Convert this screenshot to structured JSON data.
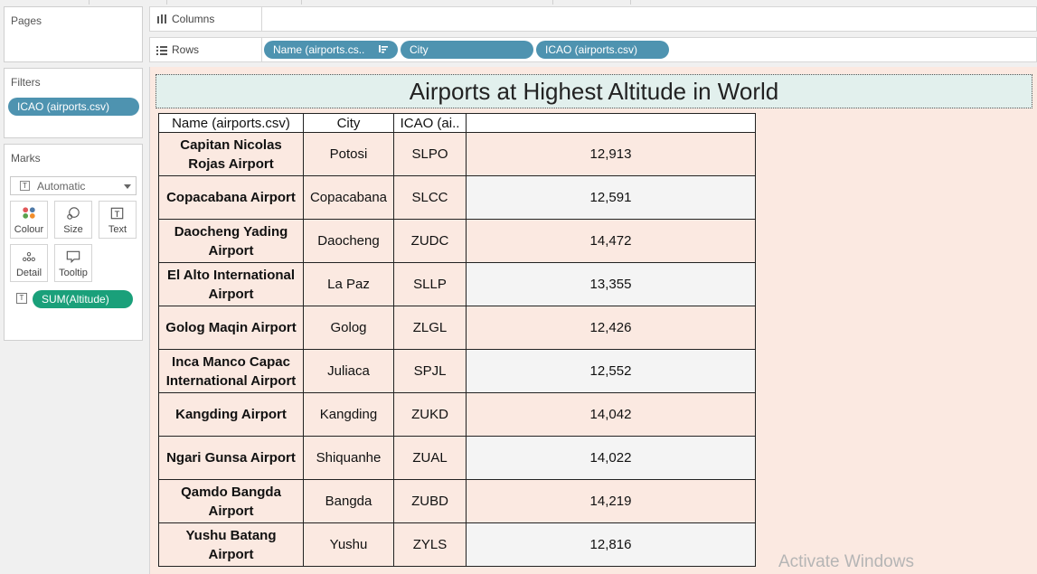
{
  "pages_panel": {
    "title": "Pages"
  },
  "filters_panel": {
    "title": "Filters",
    "pills": [
      "ICAO (airports.csv)"
    ]
  },
  "marks_panel": {
    "title": "Marks",
    "mark_type": "Automatic",
    "buttons": [
      {
        "label": "Colour",
        "icon": "colour-icon"
      },
      {
        "label": "Size",
        "icon": "size-icon"
      },
      {
        "label": "Text",
        "icon": "text-icon"
      },
      {
        "label": "Detail",
        "icon": "detail-icon"
      },
      {
        "label": "Tooltip",
        "icon": "tooltip-icon"
      }
    ],
    "text_pill": "SUM(Altitude)"
  },
  "columns_shelf": {
    "label": "Columns",
    "pills": []
  },
  "rows_shelf": {
    "label": "Rows",
    "pills": [
      "Name (airports.cs..",
      "City",
      "ICAO (airports.csv)"
    ]
  },
  "view": {
    "title": "Airports at Highest Altitude in World",
    "headers": [
      "Name (airports.csv)",
      "City",
      "ICAO (ai..",
      ""
    ],
    "rows": [
      {
        "name": "Capitan Nicolas Rojas Airport",
        "city": "Potosi",
        "icao": "SLPO",
        "altitude": "12,913"
      },
      {
        "name": "Copacabana Airport",
        "city": "Copacabana",
        "icao": "SLCC",
        "altitude": "12,591"
      },
      {
        "name": "Daocheng Yading Airport",
        "city": "Daocheng",
        "icao": "ZUDC",
        "altitude": "14,472"
      },
      {
        "name": "El Alto International Airport",
        "city": "La Paz",
        "icao": "SLLP",
        "altitude": "13,355"
      },
      {
        "name": "Golog Maqin Airport",
        "city": "Golog",
        "icao": "ZLGL",
        "altitude": "12,426"
      },
      {
        "name": "Inca Manco Capac International Airport",
        "city": "Juliaca",
        "icao": "SPJL",
        "altitude": "12,552"
      },
      {
        "name": "Kangding Airport",
        "city": "Kangding",
        "icao": "ZUKD",
        "altitude": "14,042"
      },
      {
        "name": "Ngari Gunsa Airport",
        "city": "Shiquanhe",
        "icao": "ZUAL",
        "altitude": "14,022"
      },
      {
        "name": "Qamdo Bangda Airport",
        "city": "Bangda",
        "icao": "ZUBD",
        "altitude": "14,219"
      },
      {
        "name": "Yushu Batang Airport",
        "city": "Yushu",
        "icao": "ZYLS",
        "altitude": "12,816"
      }
    ]
  },
  "watermark": "Activate Windows",
  "colors": {
    "pill_blue": "#4e93b0",
    "pill_green": "#1aa07a",
    "canvas_bg": "#fbe9e1",
    "title_bg": "#e2f0ed"
  }
}
